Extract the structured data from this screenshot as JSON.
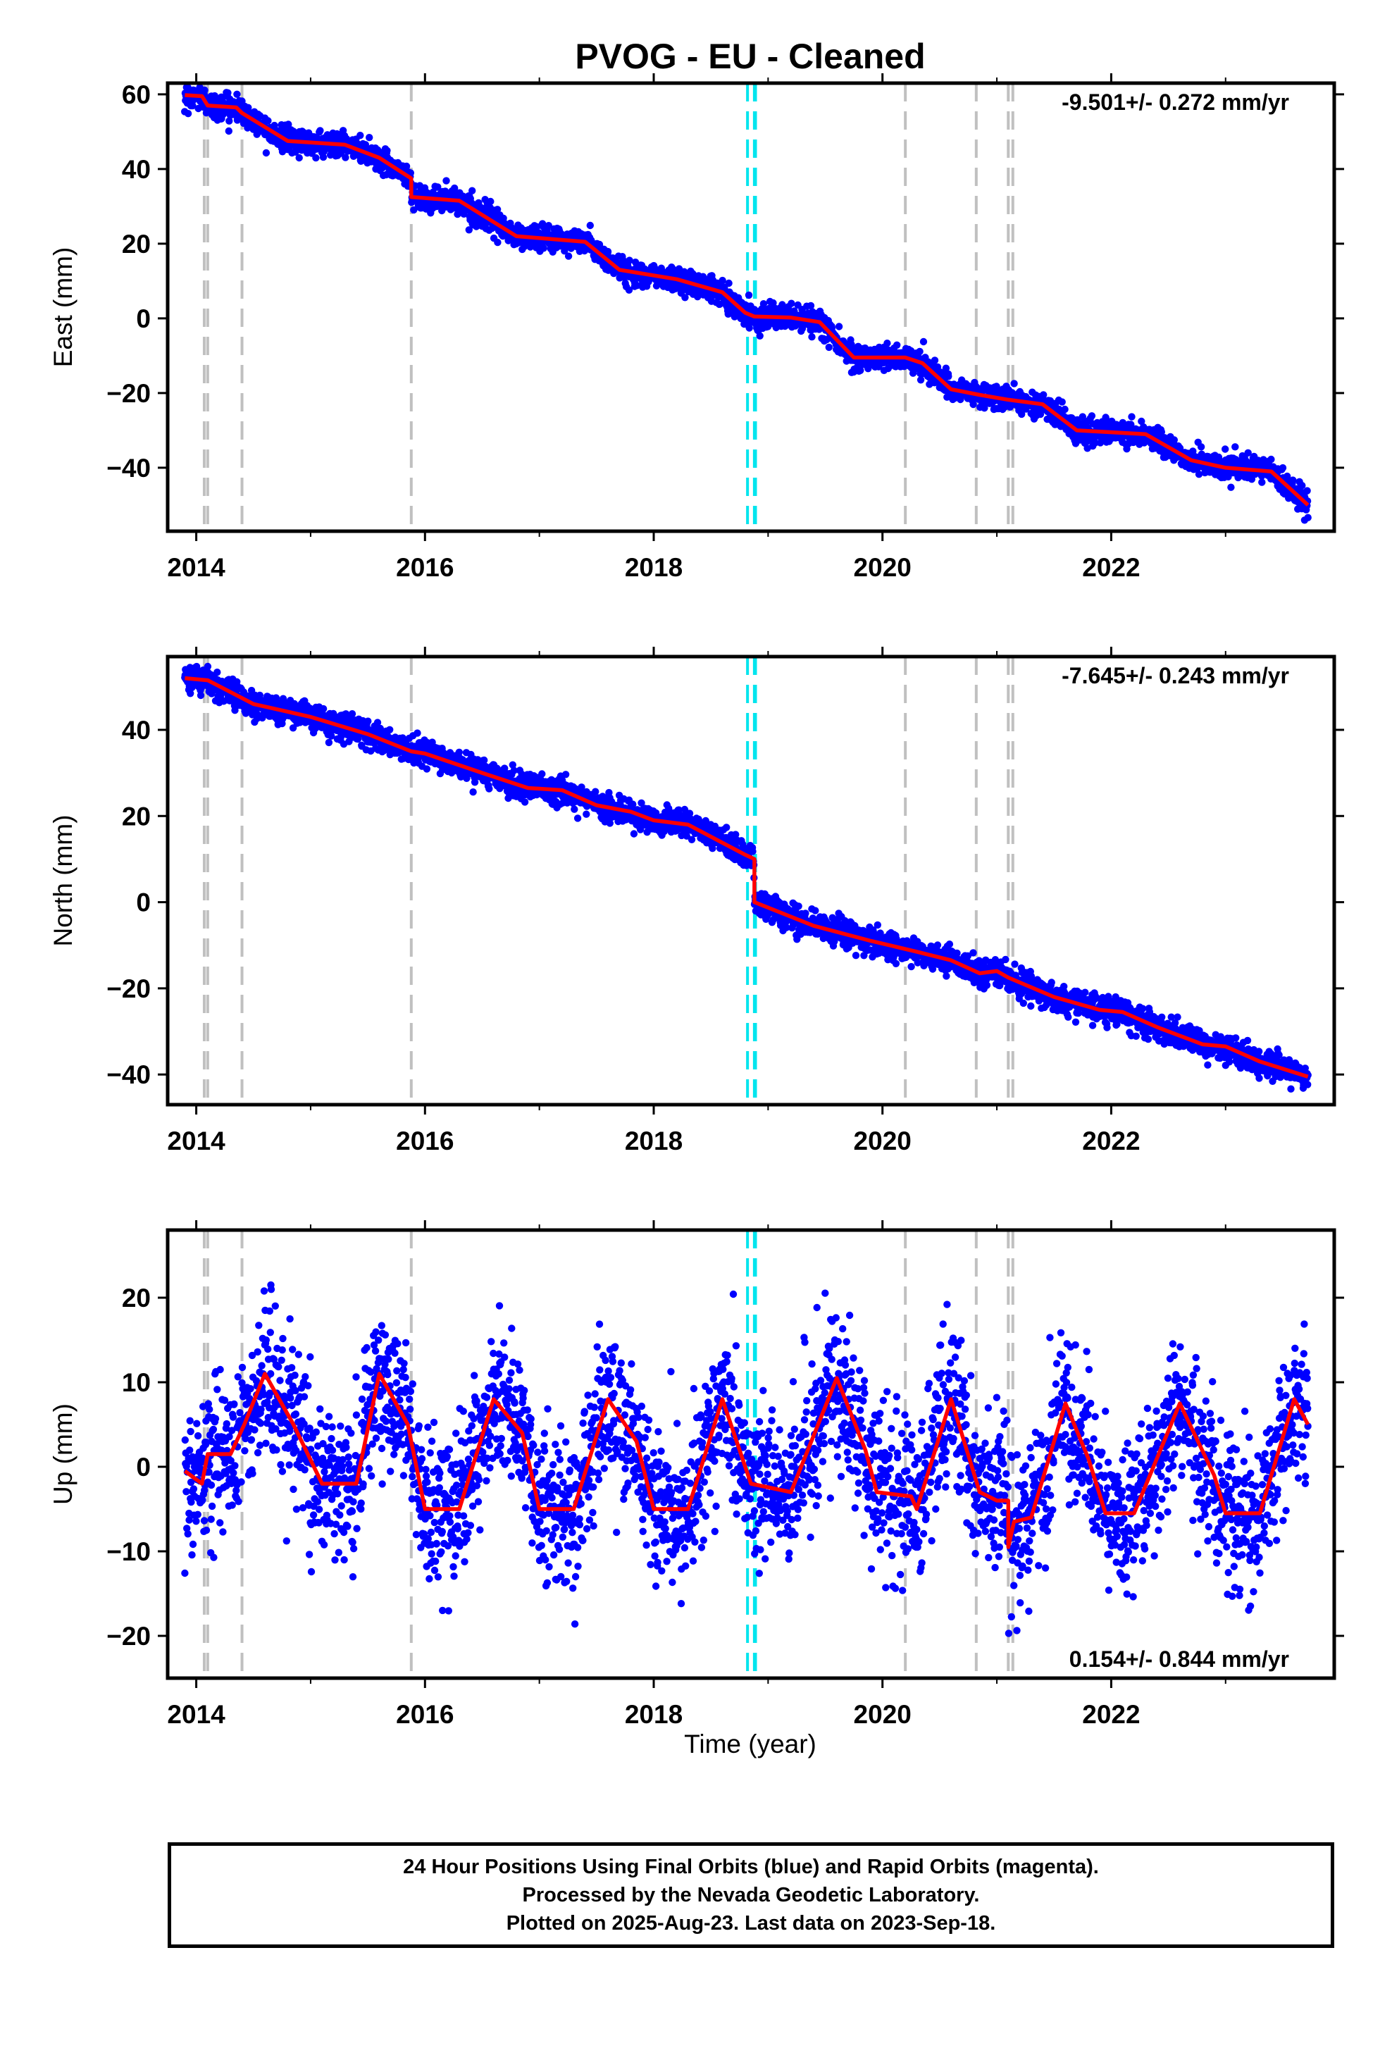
{
  "title": "PVOG  - EU - Cleaned",
  "xlabel": "Time (year)",
  "caption": [
    "24 Hour Positions Using Final Orbits (blue) and Rapid Orbits (magenta).",
    "Processed by the Nevada Geodetic Laboratory.",
    "Plotted on 2025-Aug-23. Last data on 2023-Sep-18."
  ],
  "colors": {
    "points": "#0000ff",
    "fit": "#ff0000",
    "event_gray": "#c0c0c0",
    "event_cyan": "#00e5ee"
  },
  "chart_data": [
    {
      "type": "scatter",
      "panel": "east",
      "ylabel": "East (mm)",
      "xlim": [
        2013.75,
        2023.95
      ],
      "ylim": [
        -57,
        63
      ],
      "xticks": [
        2014,
        2016,
        2018,
        2020,
        2022
      ],
      "yticks": [
        60,
        40,
        20,
        0,
        -20,
        -40
      ],
      "rate_label": "-9.501+/- 0.272 mm/yr",
      "rate_position": "top-right",
      "data_range": [
        2013.9,
        2023.72
      ],
      "fit_points": [
        [
          2013.9,
          59.8
        ],
        [
          2014.05,
          59.5
        ],
        [
          2014.1,
          57
        ],
        [
          2014.35,
          56.5
        ],
        [
          2014.4,
          55
        ],
        [
          2014.8,
          47.5
        ],
        [
          2015.3,
          46.5
        ],
        [
          2015.6,
          43
        ],
        [
          2015.88,
          37.5
        ],
        [
          2015.88,
          32.5
        ],
        [
          2016.3,
          31.5
        ],
        [
          2016.8,
          22
        ],
        [
          2017.4,
          20.5
        ],
        [
          2017.7,
          13
        ],
        [
          2018.2,
          10.5
        ],
        [
          2018.6,
          7
        ],
        [
          2018.8,
          1.5
        ],
        [
          2018.88,
          0.5
        ],
        [
          2019.2,
          0.2
        ],
        [
          2019.45,
          -1
        ],
        [
          2019.75,
          -10.5
        ],
        [
          2020.2,
          -10.5
        ],
        [
          2020.35,
          -12
        ],
        [
          2020.6,
          -19
        ],
        [
          2020.85,
          -20.5
        ],
        [
          2021.1,
          -21.8
        ],
        [
          2021.4,
          -23
        ],
        [
          2021.7,
          -30
        ],
        [
          2022.3,
          -31
        ],
        [
          2022.7,
          -38
        ],
        [
          2023.0,
          -40
        ],
        [
          2023.4,
          -41
        ],
        [
          2023.72,
          -50
        ]
      ],
      "noise_sd": 1.6,
      "n_points": 3300
    },
    {
      "type": "scatter",
      "panel": "north",
      "ylabel": "North (mm)",
      "xlim": [
        2013.75,
        2023.95
      ],
      "ylim": [
        -47,
        57
      ],
      "xticks": [
        2014,
        2016,
        2018,
        2020,
        2022
      ],
      "yticks": [
        40,
        20,
        0,
        -20,
        -40
      ],
      "rate_label": "-7.645+/- 0.243 mm/yr",
      "rate_position": "top-right",
      "data_range": [
        2013.9,
        2023.72
      ],
      "fit_points": [
        [
          2013.9,
          52
        ],
        [
          2014.1,
          51.5
        ],
        [
          2014.5,
          46
        ],
        [
          2015.0,
          43
        ],
        [
          2015.5,
          39
        ],
        [
          2015.88,
          35
        ],
        [
          2016.0,
          34.5
        ],
        [
          2016.5,
          30
        ],
        [
          2016.9,
          26.5
        ],
        [
          2017.2,
          26
        ],
        [
          2017.5,
          22.5
        ],
        [
          2017.8,
          21
        ],
        [
          2018.0,
          19
        ],
        [
          2018.3,
          18
        ],
        [
          2018.8,
          11
        ],
        [
          2018.88,
          10
        ],
        [
          2018.88,
          0
        ],
        [
          2019.4,
          -5.5
        ],
        [
          2019.9,
          -9
        ],
        [
          2020.3,
          -11.5
        ],
        [
          2020.6,
          -13.5
        ],
        [
          2020.85,
          -16.5
        ],
        [
          2021.0,
          -16
        ],
        [
          2021.1,
          -17.5
        ],
        [
          2021.5,
          -22
        ],
        [
          2021.9,
          -25
        ],
        [
          2022.1,
          -25.5
        ],
        [
          2022.4,
          -29
        ],
        [
          2022.8,
          -33
        ],
        [
          2023.0,
          -33.5
        ],
        [
          2023.3,
          -37
        ],
        [
          2023.72,
          -40.5
        ]
      ],
      "noise_sd": 1.5,
      "n_points": 3300
    },
    {
      "type": "scatter",
      "panel": "up",
      "ylabel": "Up (mm)",
      "xlim": [
        2013.75,
        2023.95
      ],
      "ylim": [
        -25,
        28
      ],
      "xticks": [
        2014,
        2016,
        2018,
        2020,
        2022
      ],
      "yticks": [
        20,
        10,
        0,
        -10,
        -20
      ],
      "rate_label": "0.154+/- 0.844 mm/yr",
      "rate_position": "bottom-right",
      "data_range": [
        2013.9,
        2023.72
      ],
      "fit_points": [
        [
          2013.9,
          -0.5
        ],
        [
          2014.05,
          -2
        ],
        [
          2014.1,
          1.5
        ],
        [
          2014.3,
          1.5
        ],
        [
          2014.42,
          5
        ],
        [
          2014.6,
          11
        ],
        [
          2014.85,
          5
        ],
        [
          2015.1,
          -2
        ],
        [
          2015.4,
          -2
        ],
        [
          2015.6,
          11
        ],
        [
          2015.85,
          5
        ],
        [
          2016.0,
          -5
        ],
        [
          2016.3,
          -5
        ],
        [
          2016.6,
          8
        ],
        [
          2016.85,
          4
        ],
        [
          2017.0,
          -5
        ],
        [
          2017.3,
          -5
        ],
        [
          2017.6,
          8
        ],
        [
          2017.85,
          3
        ],
        [
          2018.0,
          -5
        ],
        [
          2018.3,
          -5
        ],
        [
          2018.6,
          8
        ],
        [
          2018.85,
          -2
        ],
        [
          2019.2,
          -3
        ],
        [
          2019.6,
          10.5
        ],
        [
          2019.85,
          2
        ],
        [
          2019.95,
          -3
        ],
        [
          2020.25,
          -3.5
        ],
        [
          2020.3,
          -5
        ],
        [
          2020.6,
          8
        ],
        [
          2020.85,
          -3
        ],
        [
          2021.0,
          -4
        ],
        [
          2021.1,
          -4
        ],
        [
          2021.1,
          -9.5
        ],
        [
          2021.15,
          -6.5
        ],
        [
          2021.3,
          -6
        ],
        [
          2021.6,
          7.5
        ],
        [
          2021.8,
          1
        ],
        [
          2021.95,
          -5.5
        ],
        [
          2022.2,
          -5.5
        ],
        [
          2022.6,
          7.5
        ],
        [
          2022.9,
          -1
        ],
        [
          2023.0,
          -5.5
        ],
        [
          2023.3,
          -5.5
        ],
        [
          2023.6,
          8
        ],
        [
          2023.72,
          5
        ]
      ],
      "noise_sd": 4.3,
      "n_points": 3300
    }
  ],
  "event_lines": [
    {
      "year": 2014.07,
      "color": "gray"
    },
    {
      "year": 2014.1,
      "color": "gray"
    },
    {
      "year": 2014.4,
      "color": "gray"
    },
    {
      "year": 2015.88,
      "color": "gray"
    },
    {
      "year": 2018.82,
      "color": "cyan"
    },
    {
      "year": 2018.88,
      "color": "cyan"
    },
    {
      "year": 2018.89,
      "color": "cyan"
    },
    {
      "year": 2020.2,
      "color": "gray"
    },
    {
      "year": 2020.82,
      "color": "gray"
    },
    {
      "year": 2021.1,
      "color": "gray"
    },
    {
      "year": 2021.14,
      "color": "gray"
    }
  ]
}
